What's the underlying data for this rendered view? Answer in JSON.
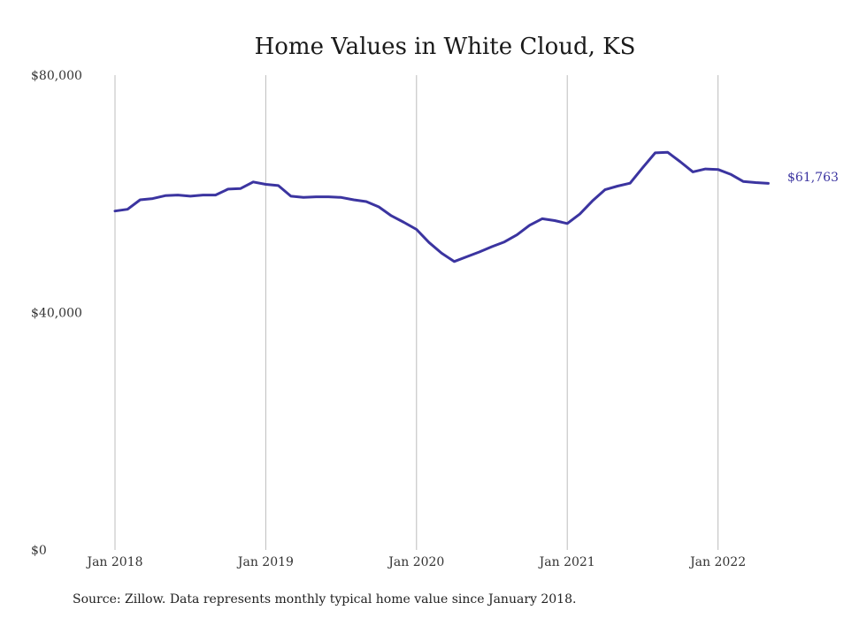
{
  "chart_data": {
    "type": "line",
    "title": "Home Values in White Cloud, KS",
    "xlabel": "",
    "ylabel": "",
    "x_tick_labels": [
      "Jan 2018",
      "Jan 2019",
      "Jan 2020",
      "Jan 2021",
      "Jan 2022"
    ],
    "y_tick_labels": [
      "$80,000",
      "$40,000",
      "$0"
    ],
    "y_ticks": [
      80000,
      40000,
      0
    ],
    "ylim": [
      0,
      80000
    ],
    "xlim": [
      "2018-01",
      "2022-05"
    ],
    "grid": "vertical lines at each January",
    "line_color": "#3b34a0",
    "end_label": "$61,763",
    "source": "Source: Zillow. Data represents monthly typical home value since January 2018.",
    "series": [
      {
        "x": [
          "2018-01",
          "2018-02",
          "2018-03",
          "2018-04",
          "2018-05",
          "2018-06",
          "2018-07",
          "2018-08",
          "2018-09",
          "2018-10",
          "2018-11",
          "2018-12",
          "2019-01",
          "2019-02",
          "2019-03",
          "2019-04",
          "2019-05",
          "2019-06",
          "2019-07",
          "2019-08",
          "2019-09",
          "2019-10",
          "2019-11",
          "2019-12",
          "2020-01",
          "2020-02",
          "2020-03",
          "2020-04",
          "2020-05",
          "2020-06",
          "2020-07",
          "2020-08",
          "2020-09",
          "2020-10",
          "2020-11",
          "2020-12",
          "2021-01",
          "2021-02",
          "2021-03",
          "2021-04",
          "2021-05",
          "2021-06",
          "2021-07",
          "2021-08",
          "2021-09",
          "2021-10",
          "2021-11",
          "2021-12",
          "2022-01",
          "2022-02",
          "2022-03",
          "2022-04",
          "2022-05"
        ],
        "values": [
          57100,
          57400,
          59000,
          59200,
          59700,
          59800,
          59600,
          59800,
          59800,
          60800,
          60900,
          62000,
          61600,
          61400,
          59600,
          59400,
          59500,
          59500,
          59400,
          59000,
          58700,
          57800,
          56300,
          55200,
          54000,
          51800,
          50000,
          48600,
          49400,
          50200,
          51100,
          51900,
          53100,
          54700,
          55800,
          55500,
          55000,
          56600,
          58800,
          60700,
          61300,
          61800,
          64400,
          66900,
          67000,
          65400,
          63700,
          64200,
          64100,
          63300,
          62100,
          61900,
          61763
        ]
      }
    ]
  }
}
